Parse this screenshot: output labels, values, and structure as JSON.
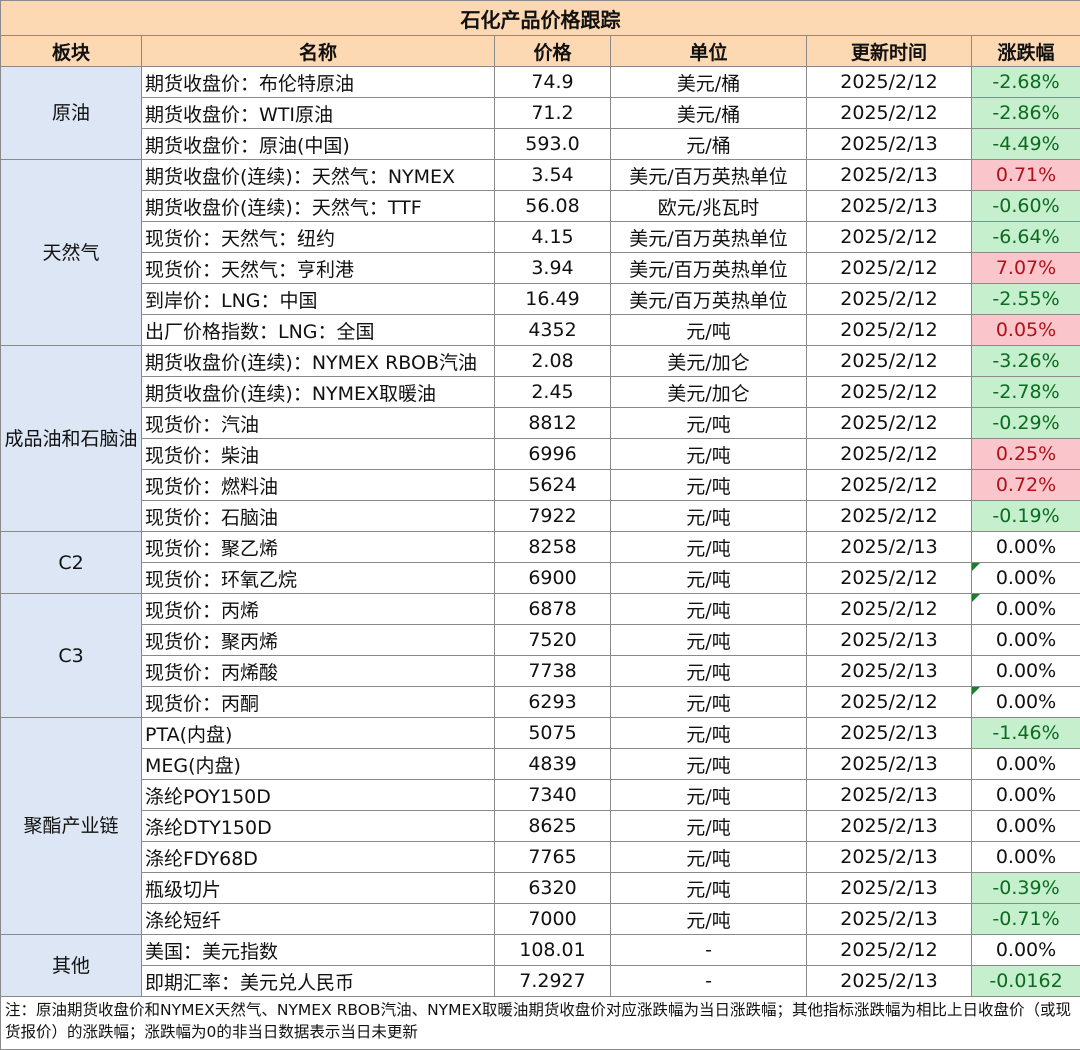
{
  "title": "石化产品价格跟踪",
  "headers": [
    "板块",
    "名称",
    "价格",
    "单位",
    "更新时间",
    "涨跌幅"
  ],
  "sectors": [
    {
      "name": "原油",
      "rows": [
        [
          "期货收盘价：布伦特原油",
          "74.9",
          "美元/桶",
          "2025/2/12",
          "-2.68%"
        ],
        [
          "期货收盘价：WTI原油",
          "71.2",
          "美元/桶",
          "2025/2/12",
          "-2.86%"
        ],
        [
          "期货收盘价：原油(中国)",
          "593.0",
          "元/桶",
          "2025/2/13",
          "-4.49%"
        ]
      ]
    },
    {
      "name": "天然气",
      "rows": [
        [
          "期货收盘价(连续)：天然气：NYMEX",
          "3.54",
          "美元/百万英热单位",
          "2025/2/13",
          "0.71%"
        ],
        [
          "期货收盘价(连续)：天然气：TTF",
          "56.08",
          "欧元/兆瓦时",
          "2025/2/13",
          "-0.60%"
        ],
        [
          "现货价：天然气：纽约",
          "4.15",
          "美元/百万英热单位",
          "2025/2/12",
          "-6.64%"
        ],
        [
          "现货价：天然气：亨利港",
          "3.94",
          "美元/百万英热单位",
          "2025/2/12",
          "7.07%"
        ],
        [
          "到岸价：LNG：中国",
          "16.49",
          "美元/百万英热单位",
          "2025/2/12",
          "-2.55%"
        ],
        [
          "出厂价格指数：LNG：全国",
          "4352",
          "元/吨",
          "2025/2/12",
          "0.05%"
        ]
      ]
    },
    {
      "name": "成品油和石脑油",
      "rows": [
        [
          "期货收盘价(连续)：NYMEX RBOB汽油",
          "2.08",
          "美元/加仑",
          "2025/2/12",
          "-3.26%"
        ],
        [
          "期货收盘价(连续)：NYMEX取暖油",
          "2.45",
          "美元/加仑",
          "2025/2/12",
          "-2.78%"
        ],
        [
          "现货价：汽油",
          "8812",
          "元/吨",
          "2025/2/12",
          "-0.29%"
        ],
        [
          "现货价：柴油",
          "6996",
          "元/吨",
          "2025/2/12",
          "0.25%"
        ],
        [
          "现货价：燃料油",
          "5624",
          "元/吨",
          "2025/2/12",
          "0.72%"
        ],
        [
          "现货价：石脑油",
          "7922",
          "元/吨",
          "2025/2/12",
          "-0.19%"
        ]
      ]
    },
    {
      "name": "C2",
      "rows": [
        [
          "现货价：聚乙烯",
          "8258",
          "元/吨",
          "2025/2/13",
          "0.00%"
        ],
        [
          "现货价：环氧乙烷",
          "6900",
          "元/吨",
          "2025/2/12",
          "0.00%"
        ]
      ]
    },
    {
      "name": "C3",
      "rows": [
        [
          "现货价：丙烯",
          "6878",
          "元/吨",
          "2025/2/12",
          "0.00%"
        ],
        [
          "现货价：聚丙烯",
          "7520",
          "元/吨",
          "2025/2/13",
          "0.00%"
        ],
        [
          "现货价：丙烯酸",
          "7738",
          "元/吨",
          "2025/2/13",
          "0.00%"
        ],
        [
          "现货价：丙酮",
          "6293",
          "元/吨",
          "2025/2/12",
          "0.00%"
        ]
      ]
    },
    {
      "name": "聚酯产业链",
      "rows": [
        [
          "PTA(内盘)",
          "5075",
          "元/吨",
          "2025/2/13",
          "-1.46%"
        ],
        [
          "MEG(内盘)",
          "4839",
          "元/吨",
          "2025/2/13",
          "0.00%"
        ],
        [
          "涤纶POY150D",
          "7340",
          "元/吨",
          "2025/2/13",
          "0.00%"
        ],
        [
          "涤纶DTY150D",
          "8625",
          "元/吨",
          "2025/2/13",
          "0.00%"
        ],
        [
          "涤纶FDY68D",
          "7765",
          "元/吨",
          "2025/2/13",
          "0.00%"
        ],
        [
          "瓶级切片",
          "6320",
          "元/吨",
          "2025/2/13",
          "-0.39%"
        ],
        [
          "涤纶短纤",
          "7000",
          "元/吨",
          "2025/2/13",
          "-0.71%"
        ]
      ]
    },
    {
      "name": "其他",
      "rows": [
        [
          "美国：美元指数",
          "108.01",
          "-",
          "2025/2/12",
          "0.00%"
        ],
        [
          "即期汇率：美元兑人民币",
          "7.2927",
          "-",
          "2025/2/13",
          "-0.0162"
        ]
      ]
    }
  ],
  "flagged_cells": [
    "现货价：环氧乙烷",
    "现货价：丙烯",
    "现货价：丙酮"
  ],
  "colors": {
    "header_bg": "#fcd8b3",
    "sector_bg": "#dce6f4",
    "up_bg": "#fbc6cb",
    "up_text": "#b0101a",
    "down_bg": "#c6efce",
    "down_text": "#0b6b1f"
  },
  "note": "注：原油期货收盘价和NYMEX天然气、NYMEX RBOB汽油、NYMEX取暖油期货收盘价对应涨跌幅为当日涨跌幅；其他指标涨跌幅为相比上日收盘价（或现货报价）的涨跌幅；涨跌幅为0的非当日数据表示当日未更新"
}
